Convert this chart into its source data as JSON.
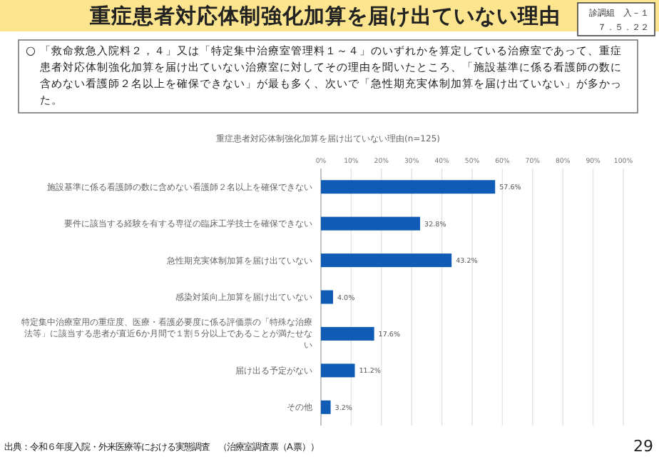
{
  "chart_data": {
    "type": "bar",
    "orientation": "horizontal",
    "title": "重症患者対応体制強化加算を届け出ていない理由(n=125)",
    "categories": [
      "施設基準に係る看護師の数に含めない看護師２名以上を確保できない",
      "要件に該当する経験を有する専従の臨床工学技士を確保できない",
      "急性期充実体制加算を届け出ていない",
      "感染対策向上加算を届け出ていない",
      "特定集中治療室用の重症度、医療・看護必要度に係る評価票の「特殊な治療法等」に該当する患者が直近6か月間で１割５分以上であることが満たせない",
      "届け出る予定がない",
      "その他"
    ],
    "values": [
      57.6,
      32.8,
      43.2,
      4.0,
      17.6,
      11.2,
      3.2
    ],
    "value_labels": [
      "57.6%",
      "32.8%",
      "43.2%",
      "4.0%",
      "17.6%",
      "11.2%",
      "3.2%"
    ],
    "color": "#0f5bb5",
    "xlim": [
      0,
      100
    ],
    "xticks": [
      {
        "value": 0,
        "label": "0%"
      },
      {
        "value": 10,
        "label": "10%"
      },
      {
        "value": 20,
        "label": "20%"
      },
      {
        "value": 30,
        "label": "30%"
      },
      {
        "value": 40,
        "label": "40%"
      },
      {
        "value": 50,
        "label": "50%"
      },
      {
        "value": 60,
        "label": "60%"
      },
      {
        "value": 70,
        "label": "70%"
      },
      {
        "value": 80,
        "label": "80%"
      },
      {
        "value": 90,
        "label": "90%"
      },
      {
        "value": 100,
        "label": "100%"
      }
    ],
    "grid": "x",
    "annotations": [
      "重症患者対応体制強化加算を届け出ていない理由",
      "診調組　入－１",
      "７．５．２２",
      "○",
      "「救命救急入院料２，４」又は「特定集中治療室管理料１～４」のいずれかを算定している治療室であって、重症患者対応体制強化加算を届け出ていない治療室に対してその理由を聞いたところ、「施設基準に係る看護師の数に含めない看護師２名以上を確保できない」が最も多く、次いで「急性期充実体制加算を届け出ていない」が多かった。",
      "出典：令和６年度入院・外来医療等における実態調査　（治療室調査票（A票））",
      "29"
    ]
  }
}
